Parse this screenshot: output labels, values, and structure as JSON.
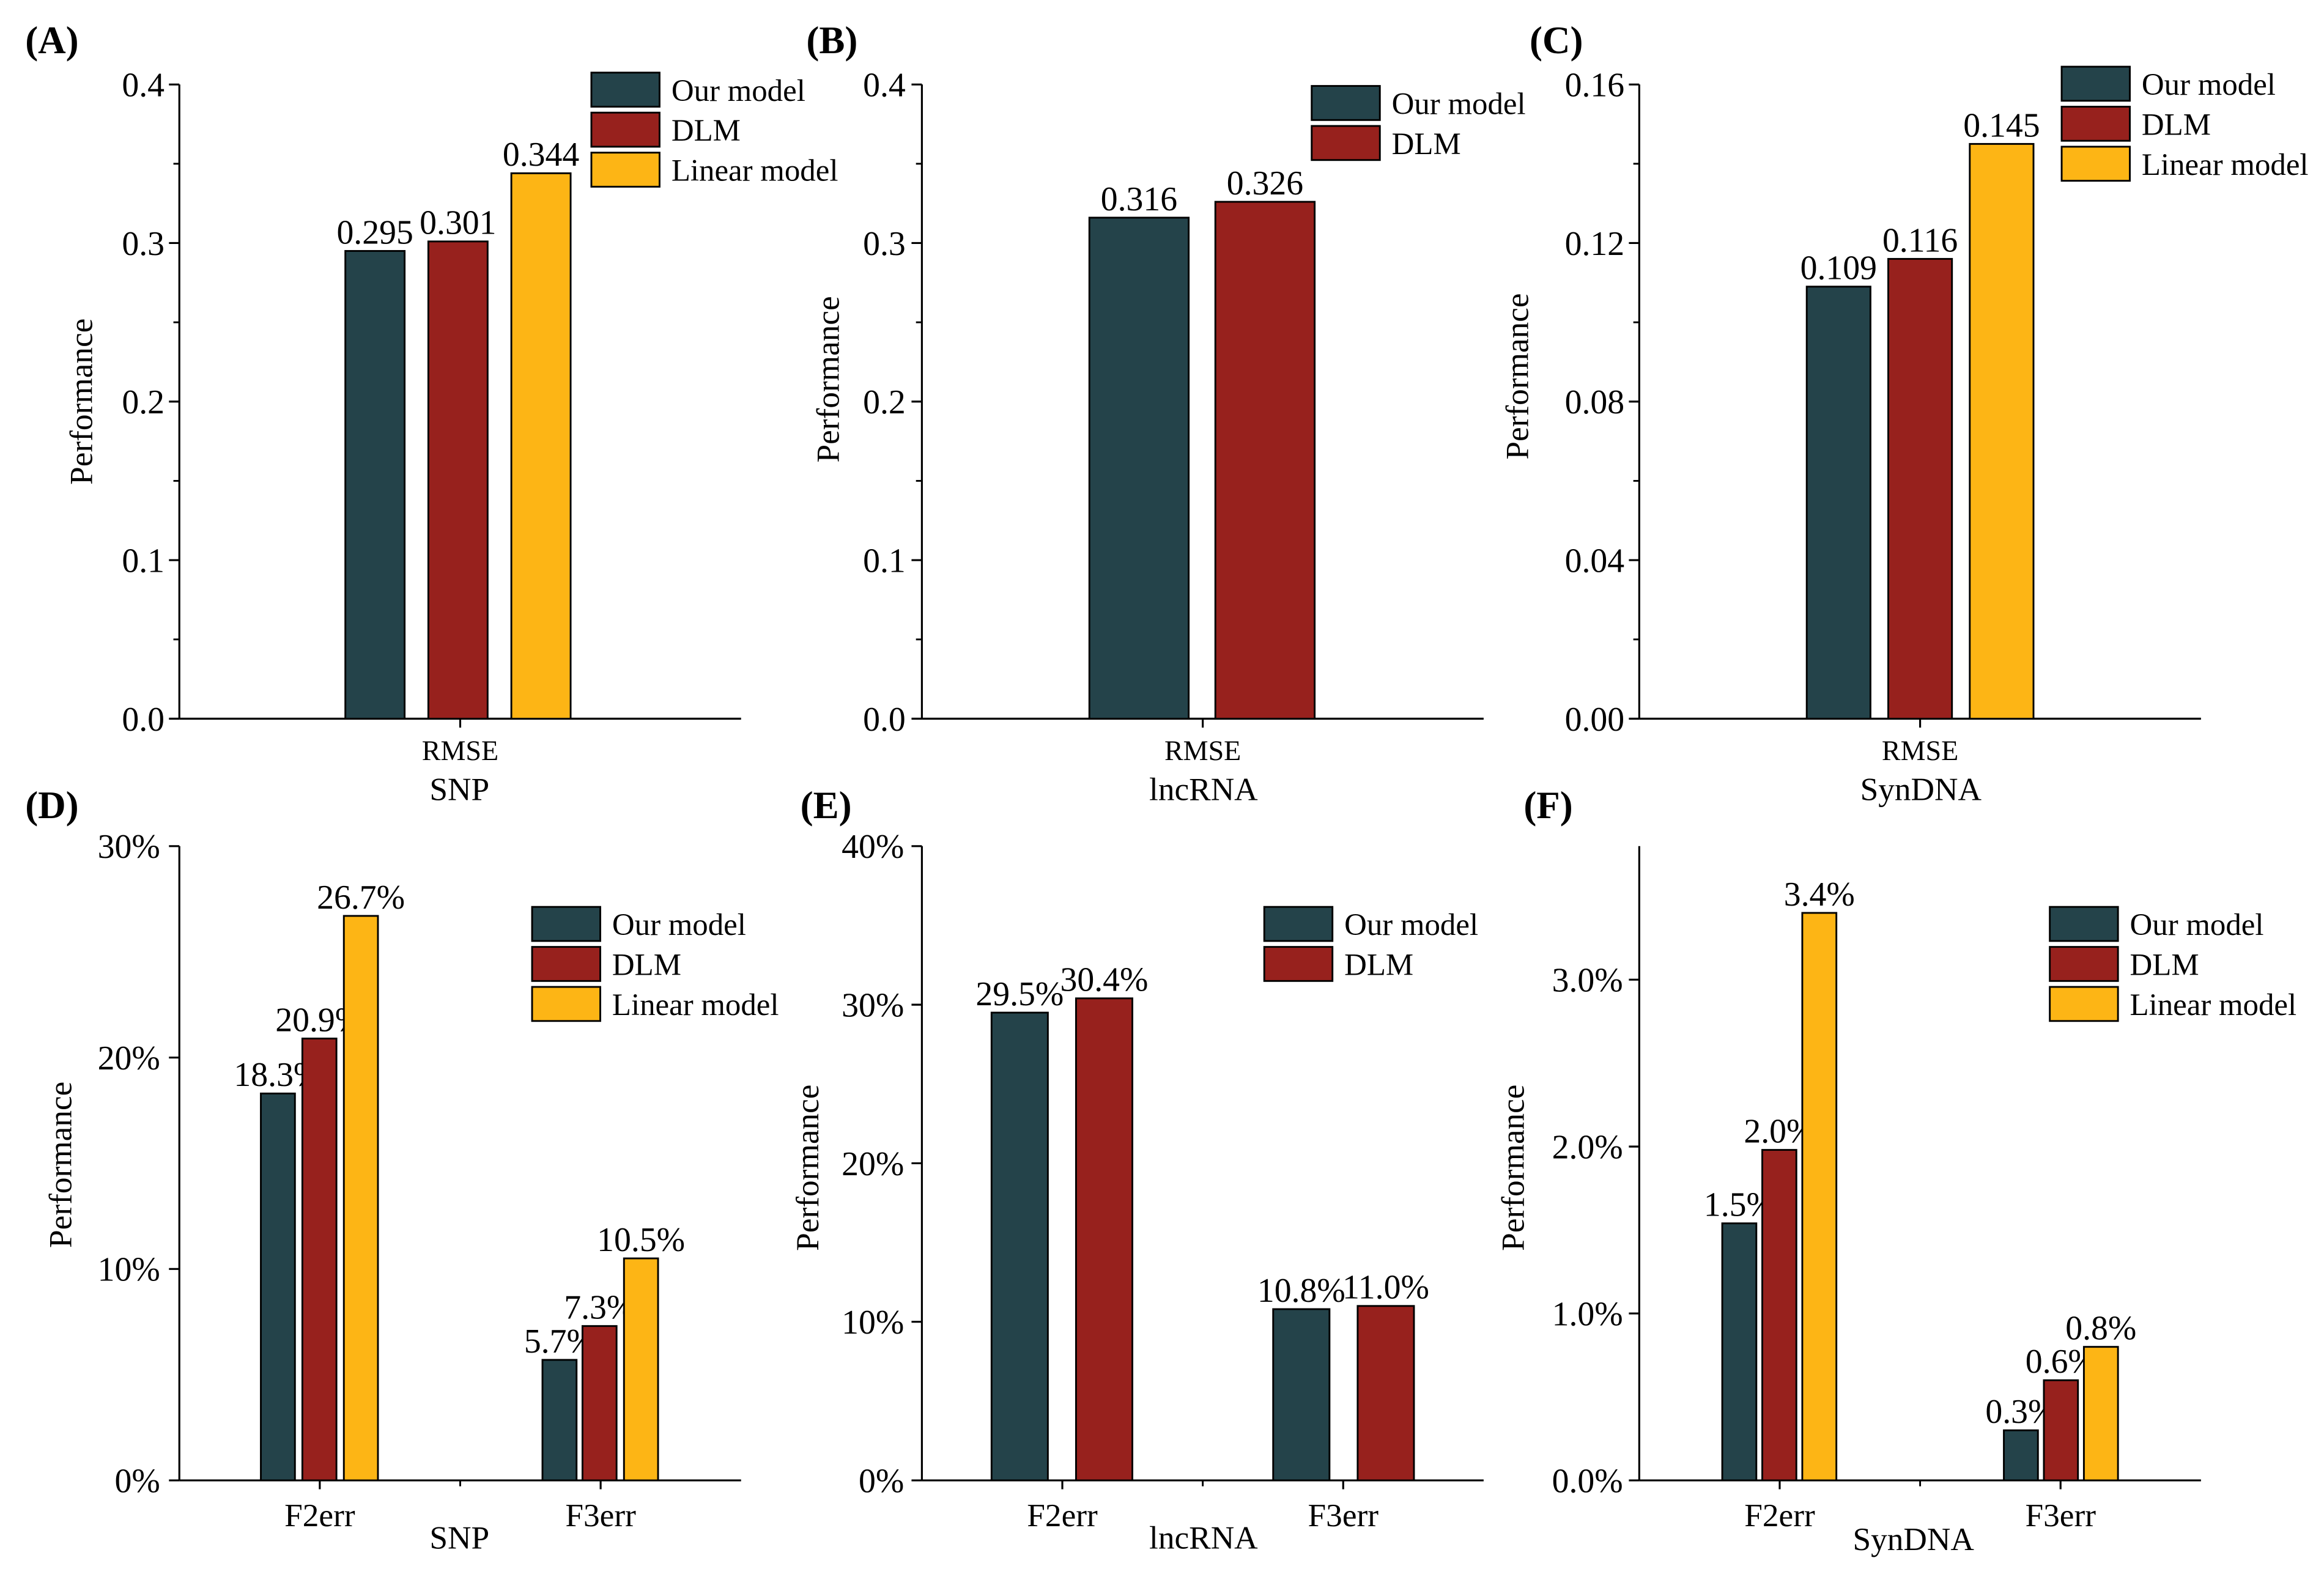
{
  "colors": {
    "our_model": "#24434A",
    "dlm": "#97211D",
    "linear_model": "#FDB515"
  },
  "chart_data": [
    {
      "id": "A",
      "panel_label": "(A)",
      "type": "bar",
      "categories": [
        "RMSE"
      ],
      "series": [
        {
          "name": "Our model",
          "color": "#24434A",
          "values": [
            0.295
          ],
          "labels": [
            "0.295"
          ]
        },
        {
          "name": "DLM",
          "color": "#97211D",
          "values": [
            0.301
          ],
          "labels": [
            "0.301"
          ]
        },
        {
          "name": "Linear model",
          "color": "#FDB515",
          "values": [
            0.344
          ],
          "labels": [
            "0.344"
          ]
        }
      ],
      "xlabel": "SNP",
      "ylabel": "Performance",
      "ylim": [
        0,
        0.4
      ],
      "yticks": [
        0,
        0.1,
        0.2,
        0.3,
        0.4
      ],
      "ytick_labels": [
        "0.0",
        "0.1",
        "0.2",
        "0.3",
        "0.4"
      ],
      "legend_position": "top-right"
    },
    {
      "id": "B",
      "panel_label": "(B)",
      "type": "bar",
      "categories": [
        "RMSE"
      ],
      "series": [
        {
          "name": "Our model",
          "color": "#24434A",
          "values": [
            0.316
          ],
          "labels": [
            "0.316"
          ]
        },
        {
          "name": "DLM",
          "color": "#97211D",
          "values": [
            0.326
          ],
          "labels": [
            "0.326"
          ]
        }
      ],
      "xlabel": "lncRNA",
      "ylabel": "Performance",
      "ylim": [
        0,
        0.4
      ],
      "yticks": [
        0,
        0.1,
        0.2,
        0.3,
        0.4
      ],
      "ytick_labels": [
        "0.0",
        "0.1",
        "0.2",
        "0.3",
        "0.4"
      ],
      "legend_position": "top-right"
    },
    {
      "id": "C",
      "panel_label": "(C)",
      "type": "bar",
      "categories": [
        "RMSE"
      ],
      "series": [
        {
          "name": "Our model",
          "color": "#24434A",
          "values": [
            0.109
          ],
          "labels": [
            "0.109"
          ]
        },
        {
          "name": "DLM",
          "color": "#97211D",
          "values": [
            0.116
          ],
          "labels": [
            "0.116"
          ]
        },
        {
          "name": "Linear model",
          "color": "#FDB515",
          "values": [
            0.145
          ],
          "labels": [
            "0.145"
          ]
        }
      ],
      "xlabel": "SynDNA",
      "ylabel": "Performance",
      "ylim": [
        0,
        0.16
      ],
      "yticks": [
        0,
        0.04,
        0.08,
        0.12,
        0.16
      ],
      "ytick_labels": [
        "0.00",
        "0.04",
        "0.08",
        "0.12",
        "0.16"
      ],
      "legend_position": "top-right"
    },
    {
      "id": "D",
      "panel_label": "(D)",
      "type": "bar",
      "categories": [
        "F2err",
        "F3err"
      ],
      "series": [
        {
          "name": "Our model",
          "color": "#24434A",
          "values": [
            18.3,
            5.7
          ],
          "labels": [
            "18.3%",
            "5.7%"
          ]
        },
        {
          "name": "DLM",
          "color": "#97211D",
          "values": [
            20.9,
            7.3
          ],
          "labels": [
            "20.9%",
            "7.3%"
          ]
        },
        {
          "name": "Linear model",
          "color": "#FDB515",
          "values": [
            26.7,
            10.5
          ],
          "labels": [
            "26.7%",
            "10.5%"
          ]
        }
      ],
      "xlabel": "SNP",
      "ylabel": "Performance",
      "ylim": [
        0,
        30
      ],
      "yticks": [
        0,
        10,
        20,
        30
      ],
      "ytick_labels": [
        "0%",
        "10%",
        "20%",
        "30%"
      ],
      "legend_position": "top-right"
    },
    {
      "id": "E",
      "panel_label": "(E)",
      "type": "bar",
      "categories": [
        "F2err",
        "F3err"
      ],
      "series": [
        {
          "name": "Our model",
          "color": "#24434A",
          "values": [
            29.5,
            10.8
          ],
          "labels": [
            "29.5%",
            "10.8%"
          ]
        },
        {
          "name": "DLM",
          "color": "#97211D",
          "values": [
            30.4,
            11.0
          ],
          "labels": [
            "30.4%",
            "11.0%"
          ]
        }
      ],
      "xlabel": "lncRNA",
      "ylabel": "Performance",
      "ylim": [
        0,
        40
      ],
      "yticks": [
        0,
        10,
        20,
        30,
        40
      ],
      "ytick_labels": [
        "0%",
        "10%",
        "20%",
        "30%",
        "40%"
      ],
      "legend_position": "top-right"
    },
    {
      "id": "F",
      "panel_label": "(F)",
      "type": "bar",
      "categories": [
        "F2err",
        "F3err"
      ],
      "series": [
        {
          "name": "Our model",
          "color": "#24434A",
          "values": [
            1.54,
            0.3
          ],
          "labels": [
            "1.5%",
            "0.3%"
          ]
        },
        {
          "name": "DLM",
          "color": "#97211D",
          "values": [
            1.98,
            0.6
          ],
          "labels": [
            "2.0%",
            "0.6%"
          ]
        },
        {
          "name": "Linear model",
          "color": "#FDB515",
          "values": [
            3.4,
            0.8
          ],
          "labels": [
            "3.4%",
            "0.8%"
          ]
        }
      ],
      "xlabel": "SynDNA",
      "ylabel": "Performance",
      "ylim": [
        0,
        3.8
      ],
      "yticks": [
        0,
        1,
        2,
        3
      ],
      "ytick_labels": [
        "0.0%",
        "1.0%",
        "2.0%",
        "3.0%"
      ],
      "legend_position": "top-right"
    }
  ]
}
